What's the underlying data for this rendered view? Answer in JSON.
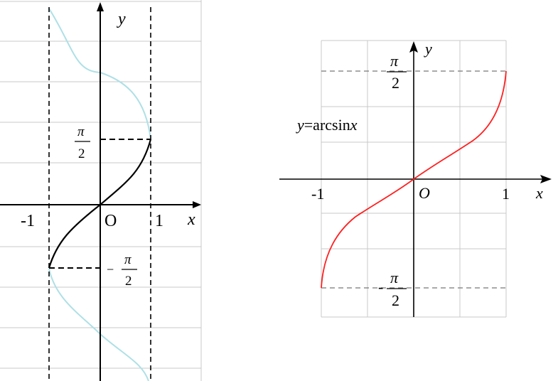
{
  "left_panel": {
    "y_label": "y",
    "x_label": "x",
    "origin_label": "O",
    "tick_neg1": "-1",
    "tick_1": "1",
    "pi_top": {
      "num": "π",
      "den": "2"
    },
    "pi_bottom": {
      "sign": "−",
      "num": "π",
      "den": "2"
    },
    "colors": {
      "sine_background": "#aee0e6",
      "arcsin_curve": "#000000",
      "grid": "#c8c8c8"
    }
  },
  "right_panel": {
    "y_label": "y",
    "x_label": "x",
    "origin_label": "O",
    "tick_neg1": "-1",
    "tick_1": "1",
    "function_label_y": "y",
    "function_label_rest": "=arcsin",
    "function_label_x": "x",
    "pi_top": {
      "num": "π",
      "den": "2"
    },
    "pi_bottom": {
      "sign": "-",
      "num": "π",
      "den": "2"
    },
    "colors": {
      "arcsin_curve": "#ff2020",
      "grid": "#c8c8c8",
      "dashed": "#777777"
    }
  }
}
